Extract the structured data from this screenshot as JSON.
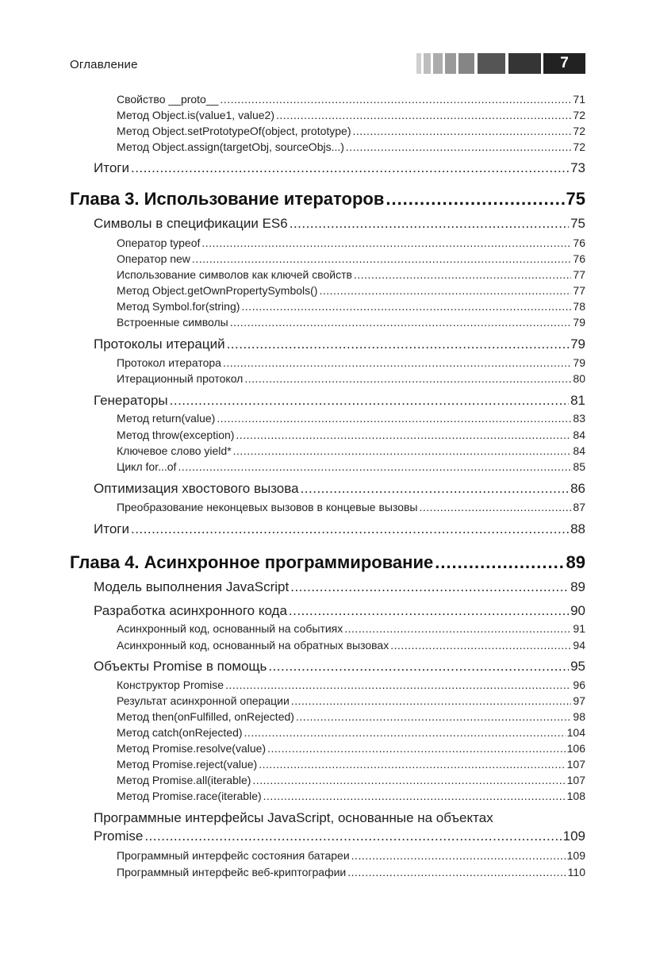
{
  "header": {
    "title": "Оглавление",
    "page_number": "7"
  },
  "entries": [
    {
      "level": 3,
      "title": "Свойство __proto__",
      "page": "71"
    },
    {
      "level": 3,
      "title": "Метод Object.is(value1, value2)",
      "page": "72"
    },
    {
      "level": 3,
      "title": "Метод Object.setPrototypeOf(object, prototype)",
      "page": "72"
    },
    {
      "level": 3,
      "title": "Метод Object.assign(targetObj, sourceObjs...)",
      "page": "72"
    },
    {
      "level": 2,
      "title": "Итоги",
      "page": "73"
    },
    {
      "level": 1,
      "title": "Глава 3. Использование итераторов",
      "page": "75"
    },
    {
      "level": 2,
      "title": "Символы в спецификации ES6",
      "page": "75"
    },
    {
      "level": 3,
      "title": "Оператор typeof",
      "page": "76"
    },
    {
      "level": 3,
      "title": "Оператор new",
      "page": "76"
    },
    {
      "level": 3,
      "title": "Использование символов как ключей свойств",
      "page": "77"
    },
    {
      "level": 3,
      "title": "Метод Object.getOwnPropertySymbols()",
      "page": "77"
    },
    {
      "level": 3,
      "title": "Метод Symbol.for(string)",
      "page": "78"
    },
    {
      "level": 3,
      "title": "Встроенные символы",
      "page": "79"
    },
    {
      "level": 2,
      "title": "Протоколы итераций",
      "page": "79"
    },
    {
      "level": 3,
      "title": "Протокол итератора",
      "page": "79"
    },
    {
      "level": 3,
      "title": "Итерационный протокол",
      "page": "80"
    },
    {
      "level": 2,
      "title": "Генераторы",
      "page": "81"
    },
    {
      "level": 3,
      "title": "Метод return(value)",
      "page": "83"
    },
    {
      "level": 3,
      "title": "Метод throw(exception)",
      "page": "84"
    },
    {
      "level": 3,
      "title": "Ключевое слово yield*",
      "page": "84"
    },
    {
      "level": 3,
      "title": "Цикл for...of",
      "page": "85"
    },
    {
      "level": 2,
      "title": "Оптимизация хвостового вызова",
      "page": "86"
    },
    {
      "level": 3,
      "title": "Преобразование неконцевых вызовов в концевые вызовы",
      "page": "87"
    },
    {
      "level": 2,
      "title": "Итоги",
      "page": "88"
    },
    {
      "level": 1,
      "title": "Глава 4. Асинхронное программирование",
      "page": "89"
    },
    {
      "level": 2,
      "title": "Модель выполнения JavaScript",
      "page": "89"
    },
    {
      "level": 2,
      "title": "Разработка асинхронного кода",
      "page": "90"
    },
    {
      "level": 3,
      "title": "Асинхронный код, основанный на событиях",
      "page": "91"
    },
    {
      "level": 3,
      "title": "Асинхронный код, основанный на обратных вызовах",
      "page": "94"
    },
    {
      "level": 2,
      "title": "Объекты Promise в помощь",
      "page": "95"
    },
    {
      "level": 3,
      "title": "Конструктор Promise",
      "page": "96"
    },
    {
      "level": 3,
      "title": "Результат асинхронной операции",
      "page": "97"
    },
    {
      "level": 3,
      "title": "Метод then(onFulfilled, onRejected)",
      "page": "98"
    },
    {
      "level": 3,
      "title": "Метод catch(onRejected)",
      "page": "104"
    },
    {
      "level": 3,
      "title": "Метод Promise.resolve(value)",
      "page": "106"
    },
    {
      "level": 3,
      "title": "Метод Promise.reject(value)",
      "page": "107"
    },
    {
      "level": 3,
      "title": "Метод Promise.all(iterable)",
      "page": "107"
    },
    {
      "level": 3,
      "title": "Метод Promise.race(iterable)",
      "page": "108"
    },
    {
      "level": 2,
      "title": "Программные интерфейсы JavaScript, основанные на объектах",
      "title_cont": "Promise",
      "page": "109"
    },
    {
      "level": 3,
      "title": "Программный интерфейс состояния батареи",
      "page": "109"
    },
    {
      "level": 3,
      "title": "Программный интерфейс веб-криптографии",
      "page": "110"
    }
  ]
}
